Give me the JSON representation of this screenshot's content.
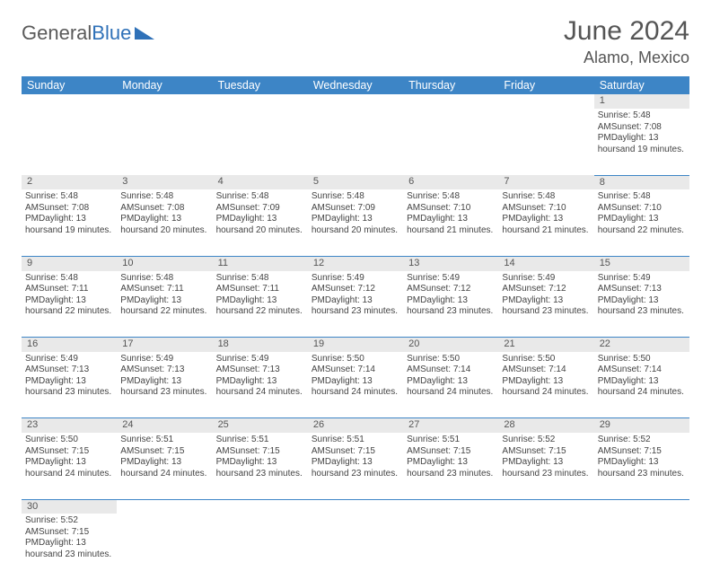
{
  "logo": {
    "part1": "General",
    "part2": "Blue"
  },
  "header": {
    "month": "June 2024",
    "location": "Alamo, Mexico"
  },
  "colors": {
    "header_bg": "#3d85c6",
    "header_text": "#ffffff",
    "daynum_bg": "#e9e9e9",
    "border": "#3d85c6",
    "text": "#444444"
  },
  "weekdays": [
    "Sunday",
    "Monday",
    "Tuesday",
    "Wednesday",
    "Thursday",
    "Friday",
    "Saturday"
  ],
  "weeks": [
    [
      null,
      null,
      null,
      null,
      null,
      null,
      {
        "n": "1",
        "sr": "Sunrise: 5:48 AM",
        "ss": "Sunset: 7:08 PM",
        "d1": "Daylight: 13 hours",
        "d2": "and 19 minutes."
      }
    ],
    [
      {
        "n": "2",
        "sr": "Sunrise: 5:48 AM",
        "ss": "Sunset: 7:08 PM",
        "d1": "Daylight: 13 hours",
        "d2": "and 19 minutes."
      },
      {
        "n": "3",
        "sr": "Sunrise: 5:48 AM",
        "ss": "Sunset: 7:08 PM",
        "d1": "Daylight: 13 hours",
        "d2": "and 20 minutes."
      },
      {
        "n": "4",
        "sr": "Sunrise: 5:48 AM",
        "ss": "Sunset: 7:09 PM",
        "d1": "Daylight: 13 hours",
        "d2": "and 20 minutes."
      },
      {
        "n": "5",
        "sr": "Sunrise: 5:48 AM",
        "ss": "Sunset: 7:09 PM",
        "d1": "Daylight: 13 hours",
        "d2": "and 20 minutes."
      },
      {
        "n": "6",
        "sr": "Sunrise: 5:48 AM",
        "ss": "Sunset: 7:10 PM",
        "d1": "Daylight: 13 hours",
        "d2": "and 21 minutes."
      },
      {
        "n": "7",
        "sr": "Sunrise: 5:48 AM",
        "ss": "Sunset: 7:10 PM",
        "d1": "Daylight: 13 hours",
        "d2": "and 21 minutes."
      },
      {
        "n": "8",
        "sr": "Sunrise: 5:48 AM",
        "ss": "Sunset: 7:10 PM",
        "d1": "Daylight: 13 hours",
        "d2": "and 22 minutes."
      }
    ],
    [
      {
        "n": "9",
        "sr": "Sunrise: 5:48 AM",
        "ss": "Sunset: 7:11 PM",
        "d1": "Daylight: 13 hours",
        "d2": "and 22 minutes."
      },
      {
        "n": "10",
        "sr": "Sunrise: 5:48 AM",
        "ss": "Sunset: 7:11 PM",
        "d1": "Daylight: 13 hours",
        "d2": "and 22 minutes."
      },
      {
        "n": "11",
        "sr": "Sunrise: 5:48 AM",
        "ss": "Sunset: 7:11 PM",
        "d1": "Daylight: 13 hours",
        "d2": "and 22 minutes."
      },
      {
        "n": "12",
        "sr": "Sunrise: 5:49 AM",
        "ss": "Sunset: 7:12 PM",
        "d1": "Daylight: 13 hours",
        "d2": "and 23 minutes."
      },
      {
        "n": "13",
        "sr": "Sunrise: 5:49 AM",
        "ss": "Sunset: 7:12 PM",
        "d1": "Daylight: 13 hours",
        "d2": "and 23 minutes."
      },
      {
        "n": "14",
        "sr": "Sunrise: 5:49 AM",
        "ss": "Sunset: 7:12 PM",
        "d1": "Daylight: 13 hours",
        "d2": "and 23 minutes."
      },
      {
        "n": "15",
        "sr": "Sunrise: 5:49 AM",
        "ss": "Sunset: 7:13 PM",
        "d1": "Daylight: 13 hours",
        "d2": "and 23 minutes."
      }
    ],
    [
      {
        "n": "16",
        "sr": "Sunrise: 5:49 AM",
        "ss": "Sunset: 7:13 PM",
        "d1": "Daylight: 13 hours",
        "d2": "and 23 minutes."
      },
      {
        "n": "17",
        "sr": "Sunrise: 5:49 AM",
        "ss": "Sunset: 7:13 PM",
        "d1": "Daylight: 13 hours",
        "d2": "and 23 minutes."
      },
      {
        "n": "18",
        "sr": "Sunrise: 5:49 AM",
        "ss": "Sunset: 7:13 PM",
        "d1": "Daylight: 13 hours",
        "d2": "and 24 minutes."
      },
      {
        "n": "19",
        "sr": "Sunrise: 5:50 AM",
        "ss": "Sunset: 7:14 PM",
        "d1": "Daylight: 13 hours",
        "d2": "and 24 minutes."
      },
      {
        "n": "20",
        "sr": "Sunrise: 5:50 AM",
        "ss": "Sunset: 7:14 PM",
        "d1": "Daylight: 13 hours",
        "d2": "and 24 minutes."
      },
      {
        "n": "21",
        "sr": "Sunrise: 5:50 AM",
        "ss": "Sunset: 7:14 PM",
        "d1": "Daylight: 13 hours",
        "d2": "and 24 minutes."
      },
      {
        "n": "22",
        "sr": "Sunrise: 5:50 AM",
        "ss": "Sunset: 7:14 PM",
        "d1": "Daylight: 13 hours",
        "d2": "and 24 minutes."
      }
    ],
    [
      {
        "n": "23",
        "sr": "Sunrise: 5:50 AM",
        "ss": "Sunset: 7:15 PM",
        "d1": "Daylight: 13 hours",
        "d2": "and 24 minutes."
      },
      {
        "n": "24",
        "sr": "Sunrise: 5:51 AM",
        "ss": "Sunset: 7:15 PM",
        "d1": "Daylight: 13 hours",
        "d2": "and 24 minutes."
      },
      {
        "n": "25",
        "sr": "Sunrise: 5:51 AM",
        "ss": "Sunset: 7:15 PM",
        "d1": "Daylight: 13 hours",
        "d2": "and 23 minutes."
      },
      {
        "n": "26",
        "sr": "Sunrise: 5:51 AM",
        "ss": "Sunset: 7:15 PM",
        "d1": "Daylight: 13 hours",
        "d2": "and 23 minutes."
      },
      {
        "n": "27",
        "sr": "Sunrise: 5:51 AM",
        "ss": "Sunset: 7:15 PM",
        "d1": "Daylight: 13 hours",
        "d2": "and 23 minutes."
      },
      {
        "n": "28",
        "sr": "Sunrise: 5:52 AM",
        "ss": "Sunset: 7:15 PM",
        "d1": "Daylight: 13 hours",
        "d2": "and 23 minutes."
      },
      {
        "n": "29",
        "sr": "Sunrise: 5:52 AM",
        "ss": "Sunset: 7:15 PM",
        "d1": "Daylight: 13 hours",
        "d2": "and 23 minutes."
      }
    ],
    [
      {
        "n": "30",
        "sr": "Sunrise: 5:52 AM",
        "ss": "Sunset: 7:15 PM",
        "d1": "Daylight: 13 hours",
        "d2": "and 23 minutes."
      },
      null,
      null,
      null,
      null,
      null,
      null
    ]
  ]
}
